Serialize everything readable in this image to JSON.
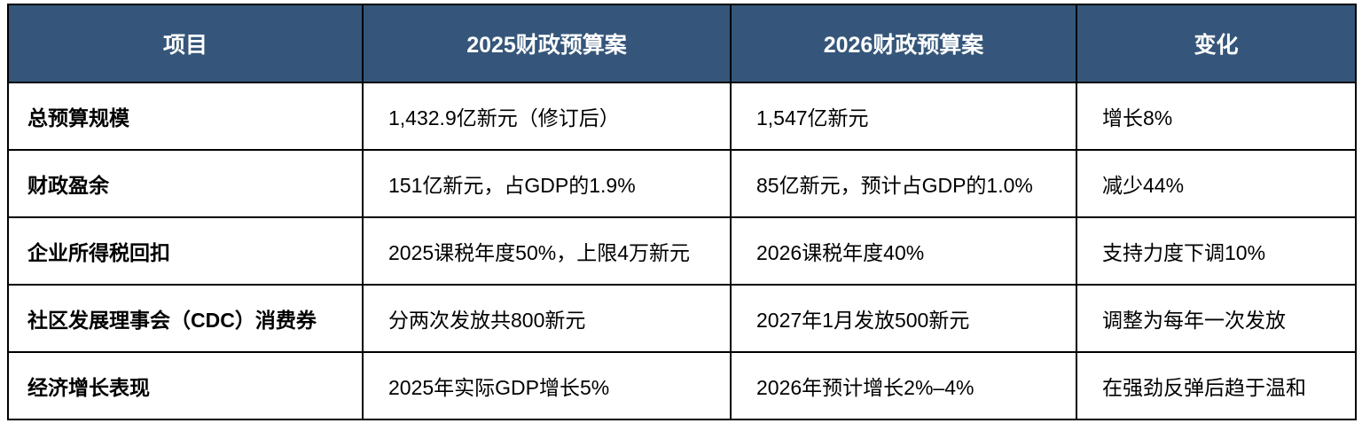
{
  "chart_data": {
    "type": "table",
    "title": "",
    "columns": [
      "项目",
      "2025财政预算案",
      "2026财政预算案",
      "变化"
    ],
    "rows": [
      [
        "总预算规模",
        "1,432.9亿新元（修订后）",
        "1,547亿新元",
        "增长8%"
      ],
      [
        "财政盈余",
        "151亿新元，占GDP的1.9%",
        "85亿新元，预计占GDP的1.0%",
        "减少44%"
      ],
      [
        "企业所得税回扣",
        "2025课税年度50%，上限4万新元",
        "2026课税年度40%",
        "支持力度下调10%"
      ],
      [
        "社区发展理事会（CDC）消费券",
        "分两次发放共800新元",
        "2027年1月发放500新元",
        "调整为每年一次发放"
      ],
      [
        "经济增长表现",
        "2025年实际GDP增长5%",
        "2026年预计增长2%–4%",
        "在强劲反弹后趋于温和"
      ]
    ],
    "layout": {
      "header_bg": "#35567A",
      "header_text_color": "#FFFFFF",
      "border_color": "#000000",
      "body_text_color": "#000000",
      "body_bg": "#FFFFFF"
    }
  }
}
